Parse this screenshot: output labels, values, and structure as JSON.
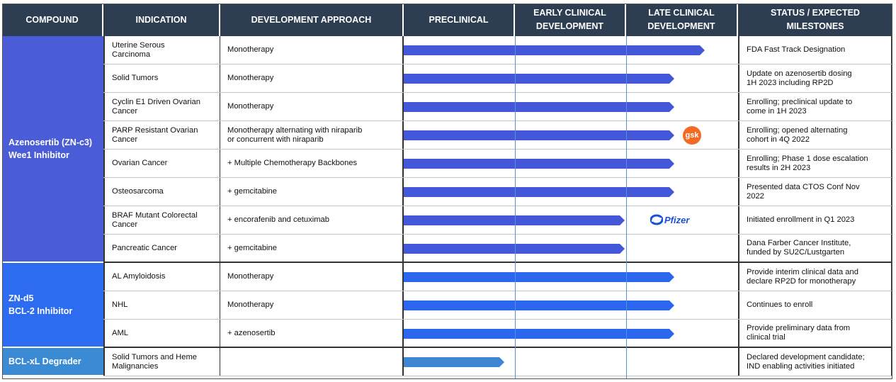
{
  "headers": {
    "compound": "COMPOUND",
    "indication": "INDICATION",
    "approach": "DEVELOPMENT APPROACH",
    "preclinical": "PRECLINICAL",
    "early_1": "EARLY CLINICAL",
    "early_2": "DEVELOPMENT",
    "late_1": "LATE CLINICAL",
    "late_2": "DEVELOPMENT",
    "status_1": "STATUS / EXPECTED",
    "status_2": "MILESTONES"
  },
  "colors": {
    "header_bg": "#2e3e52",
    "azenosertib": "#4b5dd6",
    "znd5": "#2d6bf0",
    "bclxl": "#3a8ad4",
    "bar_azenosertib": "#4457d8",
    "bar_znd5": "#2a66ee",
    "bar_bclxl": "#3f86d2"
  },
  "groups": [
    {
      "compound_line1": "Azenosertib (ZN-c3)",
      "compound_line2": "Wee1 Inhibitor",
      "color_key": "azenosertib",
      "rows": [
        {
          "indication_1": "Uterine Serous",
          "indication_2": "Carcinoma",
          "approach_1": "Monotherapy",
          "approach_2": "",
          "progress": 0.9,
          "status_1": "FDA Fast Track Designation",
          "status_2": ""
        },
        {
          "indication_1": "Solid Tumors",
          "indication_2": "",
          "approach_1": "Monotherapy",
          "approach_2": "",
          "progress": 0.81,
          "status_1": "Update on azenosertib dosing",
          "status_2": "1H 2023 including RP2D"
        },
        {
          "indication_1": "Cyclin E1 Driven Ovarian",
          "indication_2": "Cancer",
          "approach_1": "Monotherapy",
          "approach_2": "",
          "progress": 0.81,
          "status_1": "Enrolling; preclinical update to",
          "status_2": "come in 1H 2023"
        },
        {
          "indication_1": "PARP Resistant Ovarian",
          "indication_2": "Cancer",
          "approach_1": "Monotherapy alternating with niraparib",
          "approach_2": "or concurrent with niraparib",
          "progress": 0.81,
          "status_1": "Enrolling; opened alternating",
          "status_2": "cohort in 4Q 2022",
          "partner": "gsk"
        },
        {
          "indication_1": "Ovarian Cancer",
          "indication_2": "",
          "approach_1": "+ Multiple Chemotherapy Backbones",
          "approach_2": "",
          "progress": 0.81,
          "status_1": "Enrolling; Phase 1 dose escalation",
          "status_2": "results in 2H 2023"
        },
        {
          "indication_1": "Osteosarcoma",
          "indication_2": "",
          "approach_1": "+ gemcitabine",
          "approach_2": "",
          "progress": 0.81,
          "status_1": "Presented data CTOS Conf Nov",
          "status_2": "2022"
        },
        {
          "indication_1": "BRAF Mutant Colorectal",
          "indication_2": "Cancer",
          "approach_1": "+ encorafenib and cetuximab",
          "approach_2": "",
          "progress": 0.66,
          "status_1": "Initiated enrollment in Q1 2023",
          "status_2": "",
          "partner": "Pfizer"
        },
        {
          "indication_1": "Pancreatic Cancer",
          "indication_2": "",
          "approach_1": "+ gemcitabine",
          "approach_2": "",
          "progress": 0.66,
          "status_1": "Dana Farber Cancer Institute,",
          "status_2": "funded by SU2C/Lustgarten"
        }
      ]
    },
    {
      "compound_line1": "ZN-d5",
      "compound_line2": "BCL-2 Inhibitor",
      "color_key": "znd5",
      "rows": [
        {
          "indication_1": "AL Amyloidosis",
          "indication_2": "",
          "approach_1": "Monotherapy",
          "approach_2": "",
          "progress": 0.81,
          "status_1": "Provide interim clinical data and",
          "status_2": "declare RP2D  for monotherapy"
        },
        {
          "indication_1": "NHL",
          "indication_2": "",
          "approach_1": "Monotherapy",
          "approach_2": "",
          "progress": 0.81,
          "status_1": "Continues to enroll",
          "status_2": ""
        },
        {
          "indication_1": "AML",
          "indication_2": "",
          "approach_1": "+ azenosertib",
          "approach_2": "",
          "progress": 0.81,
          "status_1": "Provide preliminary data from",
          "status_2": "clinical trial"
        }
      ]
    },
    {
      "compound_line1": "BCL-xL Degrader",
      "compound_line2": "",
      "color_key": "bclxl",
      "rows": [
        {
          "indication_1": "Solid Tumors and Heme",
          "indication_2": "Malignancies",
          "approach_1": "",
          "approach_2": "",
          "progress": 0.3,
          "status_1": "Declared development candidate;",
          "status_2": "IND enabling activities initiated"
        }
      ]
    }
  ],
  "partners": {
    "gsk": "gsk",
    "pfizer": "Pfizer"
  }
}
